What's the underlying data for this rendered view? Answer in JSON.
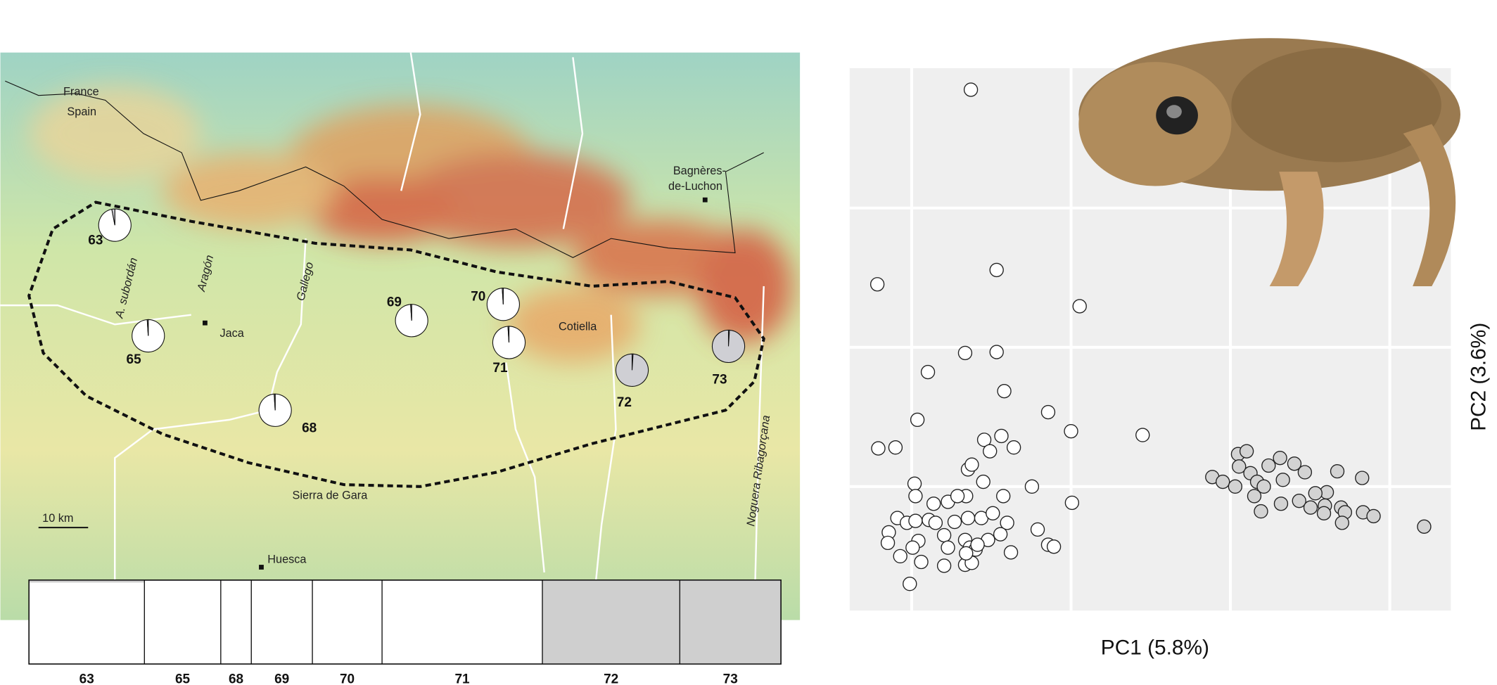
{
  "map": {
    "labels": {
      "france": "France",
      "spain": "Spain",
      "bagneres_1": "Bagnères-",
      "bagneres_2": "de-Luchon",
      "subordan": "A. subordán",
      "aragon": "Aragón",
      "gallego": "Gallego",
      "jaca": "Jaca",
      "cotiella": "Cotiella",
      "gara": "Sierra de Gara",
      "huesca": "Huesca",
      "noguera": "Noguera Ribagorçana",
      "scale": "10 km"
    },
    "pies": [
      {
        "label": "63",
        "values": [
          97,
          3
        ]
      },
      {
        "label": "65",
        "values": [
          99,
          1
        ]
      },
      {
        "label": "68",
        "values": [
          99,
          1
        ]
      },
      {
        "label": "69",
        "values": [
          99,
          1
        ]
      },
      {
        "label": "70",
        "values": [
          99,
          1
        ]
      },
      {
        "label": "71",
        "values": [
          99,
          1
        ]
      },
      {
        "label": "72",
        "values": [
          1,
          99
        ]
      },
      {
        "label": "73",
        "values": [
          1,
          99
        ]
      }
    ]
  },
  "structure": {
    "populations": [
      {
        "label": "63",
        "value": 3
      },
      {
        "label": "65",
        "value": 1
      },
      {
        "label": "68",
        "value": 1
      },
      {
        "label": "69",
        "value": 1
      },
      {
        "label": "70",
        "value": 1
      },
      {
        "label": "71",
        "value": 1
      },
      {
        "label": "72",
        "value": 99
      },
      {
        "label": "73",
        "value": 99
      }
    ]
  },
  "chart_data": {
    "type": "scatter",
    "x_label": "PC1 (5.8%)",
    "y_label": "PC2 (3.6%)",
    "xlim": [
      0,
      630
    ],
    "ylim": [
      0,
      570
    ],
    "xgrid": [
      65,
      232,
      399,
      566
    ],
    "ygrid": [
      130,
      276,
      422
    ],
    "series": [
      {
        "color": "#ffffff",
        "x": [
          127,
          29,
          154,
          241,
          121,
          154,
          82,
          162,
          71,
          208,
          232,
          307,
          30,
          48,
          141,
          159,
          147,
          172,
          124,
          128,
          191,
          68,
          69,
          88,
          103,
          122,
          161,
          233,
          50,
          60,
          69,
          83,
          110,
          124,
          138,
          150,
          165,
          197,
          41,
          72,
          99,
          121,
          145,
          158,
          40,
          66,
          103,
          126,
          132,
          134,
          169,
          208,
          214,
          53,
          75,
          99,
          121,
          128,
          63,
          122,
          90,
          140,
          113
        ],
        "values": [
          546,
          342,
          357,
          319,
          270,
          271,
          250,
          230,
          200,
          208,
          188,
          184,
          170,
          171,
          179,
          183,
          167,
          171,
          148,
          153,
          130,
          133,
          120,
          112,
          114,
          120,
          120,
          113,
          97,
          92,
          94,
          95,
          93,
          97,
          97,
          102,
          92,
          85,
          82,
          73,
          79,
          74,
          74,
          80,
          71,
          66,
          66,
          66,
          64,
          69,
          61,
          69,
          67,
          57,
          51,
          47,
          48,
          50,
          28,
          60,
          92,
          135,
          120
        ]
      },
      {
        "color": "#d3d3d3",
        "x": [
          407,
          416,
          408,
          420,
          439,
          451,
          466,
          477,
          511,
          537,
          380,
          391,
          404,
          427,
          434,
          454,
          471,
          483,
          500,
          515,
          519,
          498,
          488,
          431,
          452,
          497,
          516,
          538,
          549,
          602,
          424
        ],
        "values": [
          164,
          167,
          151,
          144,
          152,
          160,
          154,
          145,
          146,
          139,
          140,
          135,
          130,
          135,
          130,
          137,
          115,
          108,
          124,
          108,
          103,
          110,
          123,
          104,
          112,
          102,
          92,
          103,
          99,
          88,
          120
        ]
      }
    ]
  }
}
